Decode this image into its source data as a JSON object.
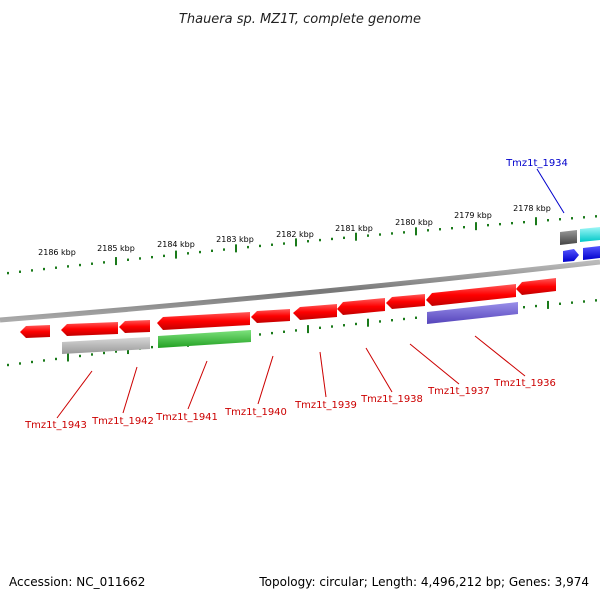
{
  "title": "Thauera sp. MZ1T, complete genome",
  "footer": {
    "accession": "Accession: NC_011662",
    "summary": "Topology: circular; Length: 4,496,212 bp; Genes: 3,974"
  },
  "colors": {
    "background": "#ffffff",
    "backbone": "#888888",
    "tick": "#1a7a1a",
    "forward_label": "#0000cc",
    "reverse_label": "#cc0000",
    "red_gene": "#ff0000",
    "gray_gene": "#aaaaaa",
    "green_gene": "#33bb33",
    "purple_gene": "#6655cc",
    "cyan_gene": "#00e0e0",
    "blue_gene": "#0000ee",
    "darkgray_gene": "#666666"
  },
  "scale_labels": [
    "2186 kbp",
    "2185 kbp",
    "2184 kbp",
    "2183 kbp",
    "2182 kbp",
    "2181 kbp",
    "2180 kbp",
    "2179 kbp",
    "2178 kbp"
  ],
  "gene_labels": [
    {
      "text": "Tmz1t_1934",
      "strand": "forward"
    },
    {
      "text": "Tmz1t_1936",
      "strand": "reverse"
    },
    {
      "text": "Tmz1t_1937",
      "strand": "reverse"
    },
    {
      "text": "Tmz1t_1938",
      "strand": "reverse"
    },
    {
      "text": "Tmz1t_1939",
      "strand": "reverse"
    },
    {
      "text": "Tmz1t_1940",
      "strand": "reverse"
    },
    {
      "text": "Tmz1t_1941",
      "strand": "reverse"
    },
    {
      "text": "Tmz1t_1942",
      "strand": "reverse"
    },
    {
      "text": "Tmz1t_1943",
      "strand": "reverse"
    }
  ]
}
